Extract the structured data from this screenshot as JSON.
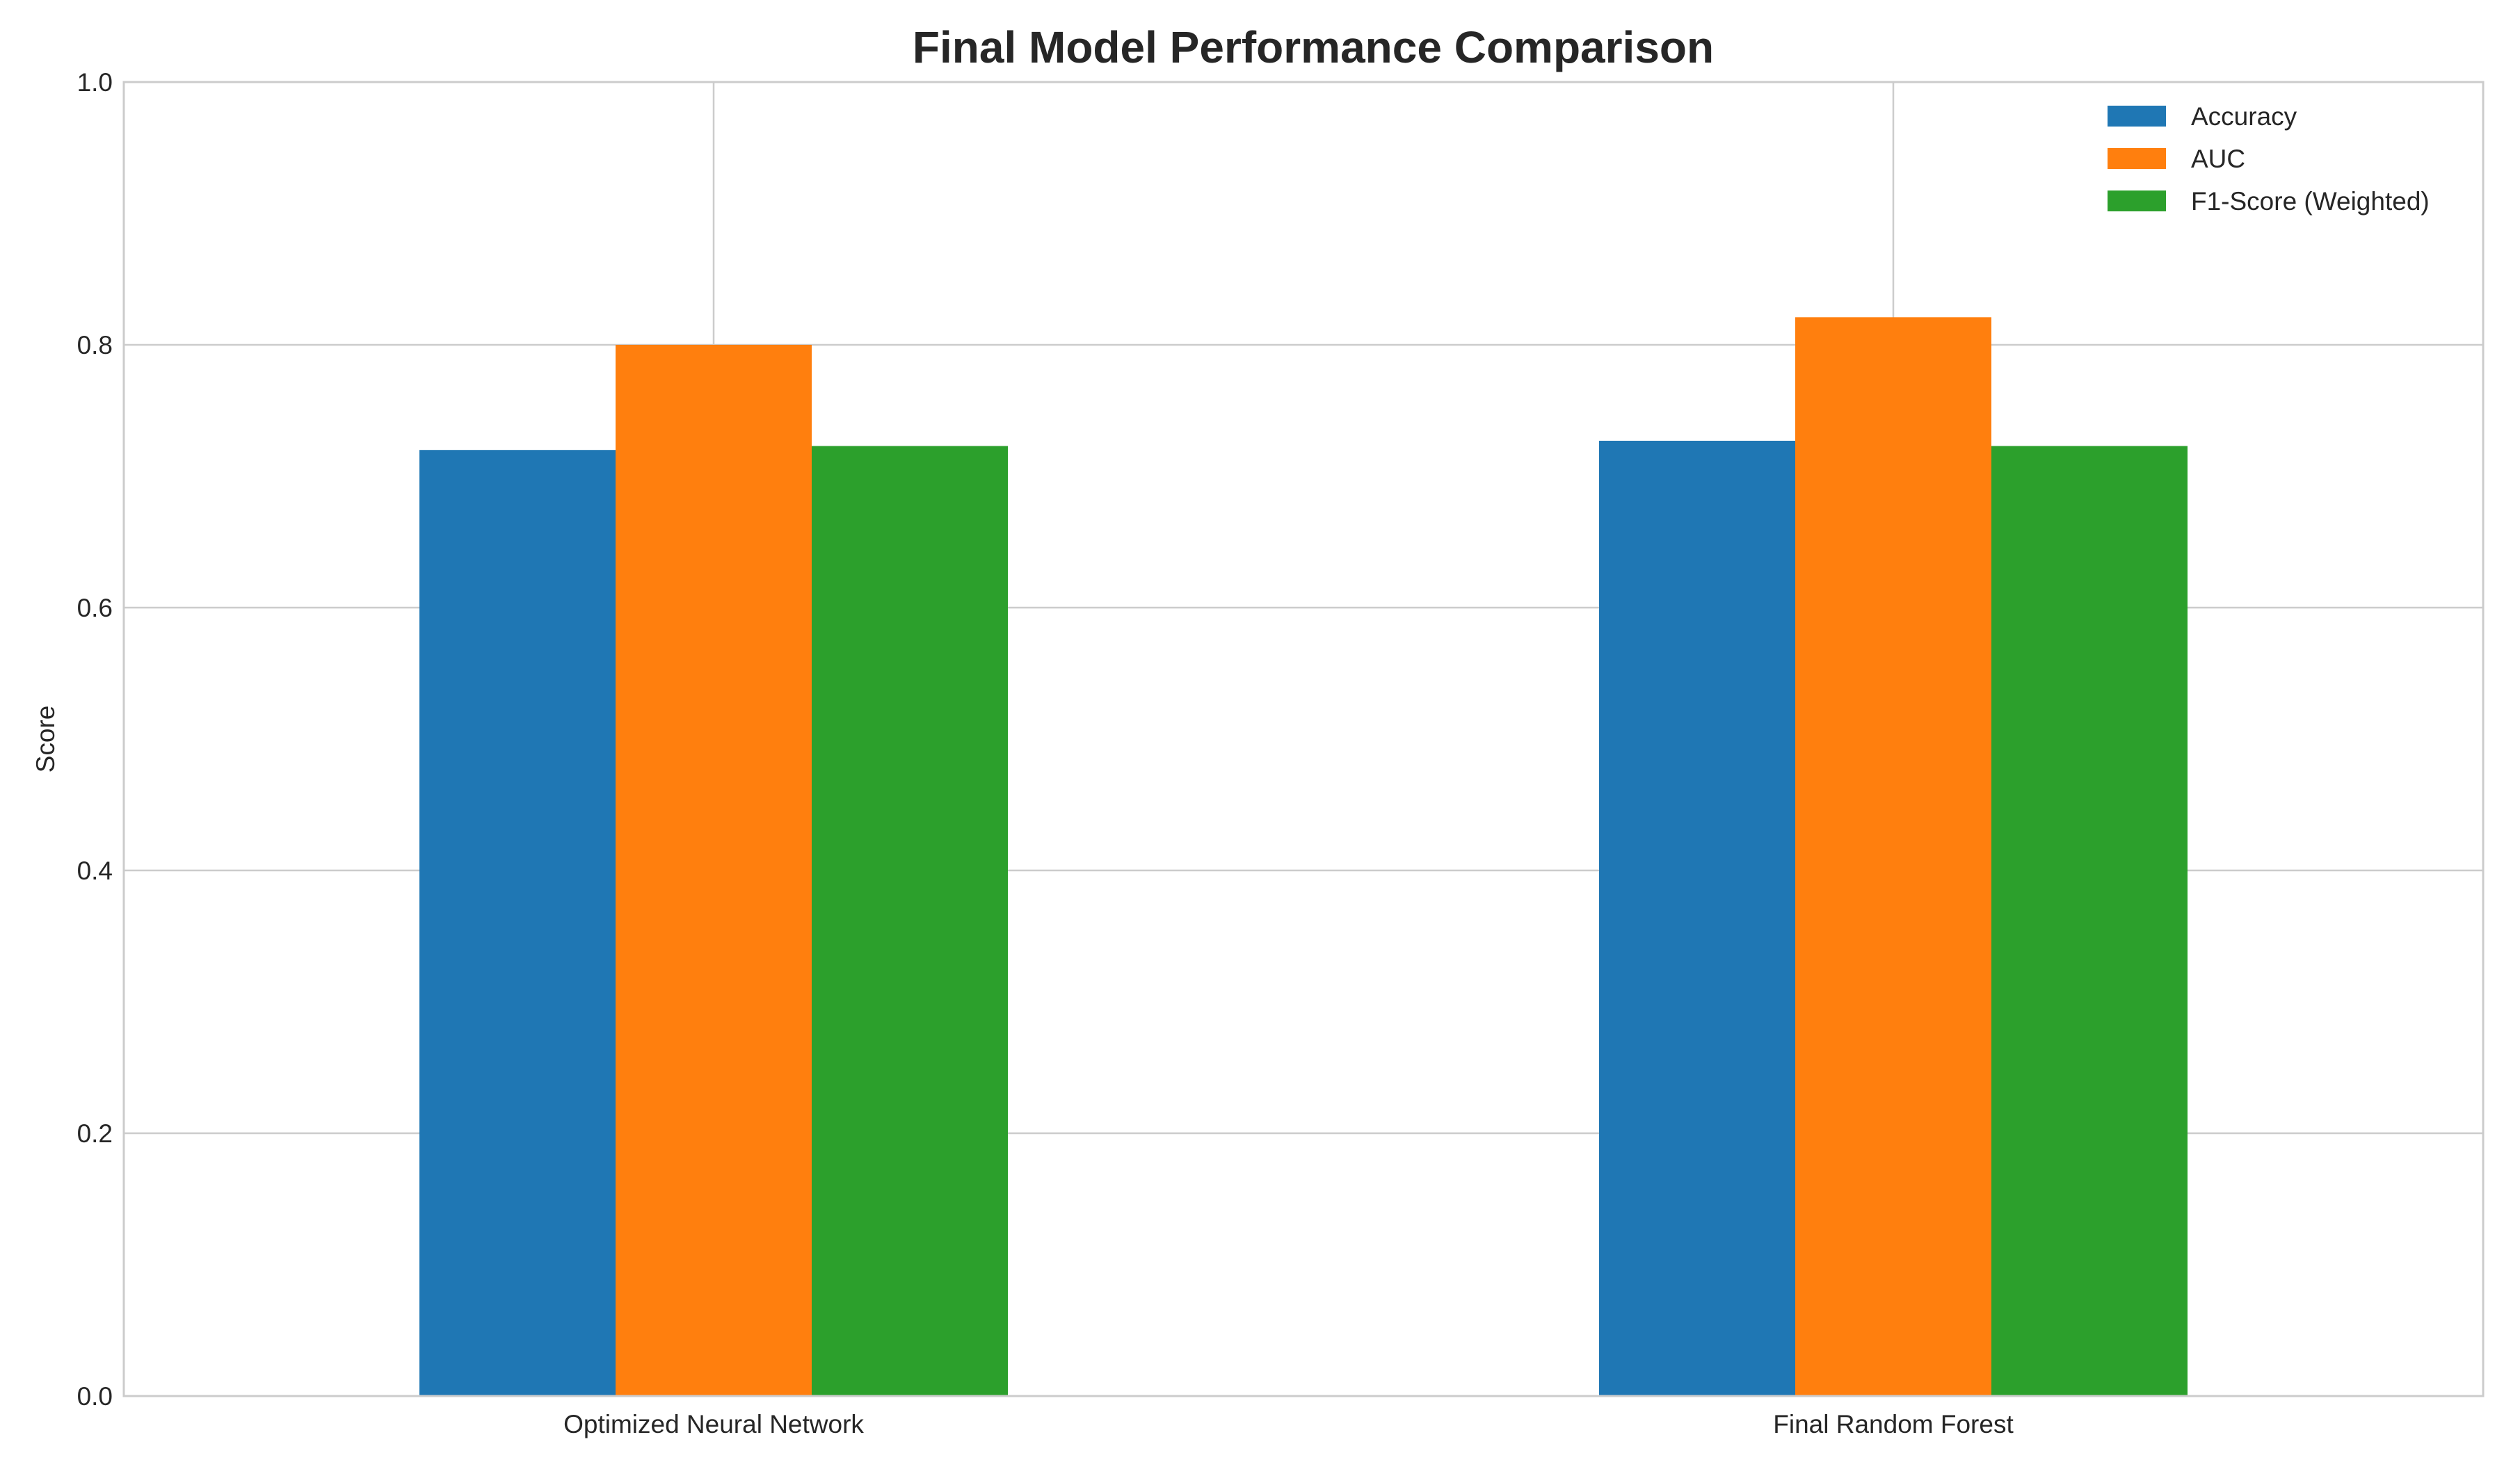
{
  "chart_data": {
    "type": "bar",
    "title": "Final Model Performance Comparison",
    "xlabel": "",
    "ylabel": "Score",
    "ylim": [
      0,
      1.0
    ],
    "yticks": [
      "0.0",
      "0.2",
      "0.4",
      "0.6",
      "0.8",
      "1.0"
    ],
    "categories": [
      "Optimized Neural Network",
      "Final Random Forest"
    ],
    "series": [
      {
        "name": "Accuracy",
        "color": "#1f77b4",
        "values": [
          0.72,
          0.727
        ]
      },
      {
        "name": "AUC",
        "color": "#ff7f0e",
        "values": [
          0.8,
          0.821
        ]
      },
      {
        "name": "F1-Score (Weighted)",
        "color": "#2ca02c",
        "values": [
          0.723,
          0.723
        ]
      }
    ],
    "grid": true,
    "legend_position": "top-right"
  }
}
